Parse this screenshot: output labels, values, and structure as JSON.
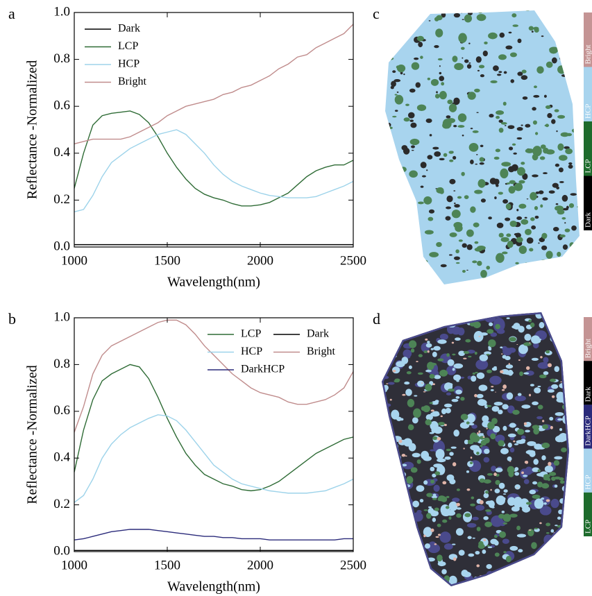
{
  "chart_data": [
    {
      "type": "line",
      "panel_label": "a",
      "xlabel": "Wavelength(nm)",
      "ylabel": "Reflectance -Normalized",
      "x": [
        1000,
        1050,
        1100,
        1150,
        1200,
        1250,
        1300,
        1350,
        1400,
        1450,
        1500,
        1550,
        1600,
        1650,
        1700,
        1750,
        1800,
        1850,
        1900,
        1950,
        2000,
        2050,
        2100,
        2150,
        2200,
        2250,
        2300,
        2350,
        2400,
        2450,
        2500
      ],
      "series": [
        {
          "name": "Dark",
          "color": "#000000",
          "values": [
            0.01,
            0.01,
            0.01,
            0.01,
            0.01,
            0.01,
            0.01,
            0.01,
            0.01,
            0.01,
            0.01,
            0.01,
            0.01,
            0.01,
            0.01,
            0.01,
            0.01,
            0.01,
            0.01,
            0.01,
            0.01,
            0.01,
            0.01,
            0.01,
            0.01,
            0.01,
            0.01,
            0.01,
            0.01,
            0.01,
            0.01
          ]
        },
        {
          "name": "LCP",
          "color": "#2e6b35",
          "values": [
            0.25,
            0.4,
            0.52,
            0.56,
            0.57,
            0.575,
            0.58,
            0.565,
            0.53,
            0.47,
            0.4,
            0.34,
            0.29,
            0.25,
            0.225,
            0.21,
            0.2,
            0.185,
            0.175,
            0.175,
            0.18,
            0.19,
            0.21,
            0.23,
            0.265,
            0.3,
            0.325,
            0.34,
            0.35,
            0.35,
            0.37
          ]
        },
        {
          "name": "HCP",
          "color": "#9dd3ea",
          "values": [
            0.15,
            0.16,
            0.22,
            0.3,
            0.36,
            0.39,
            0.42,
            0.44,
            0.46,
            0.48,
            0.49,
            0.5,
            0.48,
            0.44,
            0.4,
            0.35,
            0.31,
            0.28,
            0.26,
            0.245,
            0.23,
            0.22,
            0.215,
            0.21,
            0.21,
            0.21,
            0.215,
            0.23,
            0.245,
            0.26,
            0.28
          ]
        },
        {
          "name": "Bright",
          "color": "#c08c8c",
          "values": [
            0.44,
            0.45,
            0.46,
            0.46,
            0.46,
            0.46,
            0.47,
            0.49,
            0.51,
            0.53,
            0.56,
            0.58,
            0.6,
            0.61,
            0.62,
            0.63,
            0.65,
            0.66,
            0.68,
            0.69,
            0.71,
            0.73,
            0.76,
            0.78,
            0.81,
            0.82,
            0.85,
            0.87,
            0.89,
            0.91,
            0.95
          ]
        }
      ],
      "xlim": [
        1000,
        2500
      ],
      "ylim": [
        0,
        1
      ],
      "xticks": [
        1000,
        1500,
        2000,
        2500
      ],
      "yticks": [
        {
          "value": 0,
          "label": "0.0"
        },
        {
          "value": 0.2,
          "label": "0.2"
        },
        {
          "value": 0.4,
          "label": "0.4"
        },
        {
          "value": 0.6,
          "label": "0.6"
        },
        {
          "value": 0.8,
          "label": "0.8"
        },
        {
          "value": 1,
          "label": "1.0"
        }
      ],
      "legend": "upper left",
      "legend_columns": 1
    },
    {
      "type": "line",
      "panel_label": "b",
      "xlabel": "Wavelength(nm)",
      "ylabel": "Reflectance -Normalized",
      "x": [
        1000,
        1050,
        1100,
        1150,
        1200,
        1250,
        1300,
        1350,
        1400,
        1450,
        1500,
        1550,
        1600,
        1650,
        1700,
        1750,
        1800,
        1850,
        1900,
        1950,
        2000,
        2050,
        2100,
        2150,
        2200,
        2250,
        2300,
        2350,
        2400,
        2450,
        2500
      ],
      "series": [
        {
          "name": "LCP",
          "color": "#2e6b35",
          "values": [
            0.34,
            0.52,
            0.65,
            0.73,
            0.76,
            0.78,
            0.8,
            0.79,
            0.74,
            0.66,
            0.57,
            0.49,
            0.42,
            0.37,
            0.33,
            0.31,
            0.29,
            0.28,
            0.265,
            0.26,
            0.265,
            0.28,
            0.3,
            0.33,
            0.36,
            0.39,
            0.42,
            0.44,
            0.46,
            0.48,
            0.49
          ]
        },
        {
          "name": "HCP",
          "color": "#9dd3ea",
          "values": [
            0.21,
            0.24,
            0.31,
            0.4,
            0.46,
            0.5,
            0.53,
            0.55,
            0.57,
            0.585,
            0.58,
            0.56,
            0.52,
            0.47,
            0.42,
            0.37,
            0.34,
            0.31,
            0.29,
            0.28,
            0.27,
            0.26,
            0.255,
            0.25,
            0.25,
            0.25,
            0.255,
            0.26,
            0.275,
            0.29,
            0.31
          ]
        },
        {
          "name": "DarkHCP",
          "color": "#2a2a7a",
          "values": [
            0.05,
            0.055,
            0.065,
            0.075,
            0.085,
            0.09,
            0.095,
            0.095,
            0.095,
            0.09,
            0.085,
            0.08,
            0.075,
            0.07,
            0.065,
            0.065,
            0.06,
            0.06,
            0.055,
            0.055,
            0.055,
            0.05,
            0.05,
            0.05,
            0.05,
            0.05,
            0.05,
            0.05,
            0.05,
            0.055,
            0.055
          ]
        },
        {
          "name": "Dark",
          "color": "#000000",
          "values": [
            0.005,
            0.005,
            0.005,
            0.005,
            0.005,
            0.005,
            0.005,
            0.005,
            0.005,
            0.005,
            0.005,
            0.005,
            0.005,
            0.005,
            0.005,
            0.005,
            0.005,
            0.005,
            0.005,
            0.005,
            0.005,
            0.005,
            0.005,
            0.005,
            0.005,
            0.005,
            0.005,
            0.005,
            0.005,
            0.005,
            0.005
          ]
        },
        {
          "name": "Bright",
          "color": "#c08c8c",
          "values": [
            0.51,
            0.62,
            0.76,
            0.84,
            0.88,
            0.9,
            0.92,
            0.94,
            0.96,
            0.98,
            0.99,
            0.99,
            0.97,
            0.93,
            0.88,
            0.84,
            0.8,
            0.76,
            0.73,
            0.7,
            0.68,
            0.67,
            0.66,
            0.64,
            0.63,
            0.63,
            0.64,
            0.65,
            0.67,
            0.7,
            0.77
          ]
        }
      ],
      "xlim": [
        1000,
        2500
      ],
      "ylim": [
        0,
        1
      ],
      "xticks": [
        1000,
        1500,
        2000,
        2500
      ],
      "yticks": [
        {
          "value": 0,
          "label": "0.0"
        },
        {
          "value": 0.2,
          "label": "0.2"
        },
        {
          "value": 0.4,
          "label": "0.4"
        },
        {
          "value": 0.6,
          "label": "0.6"
        },
        {
          "value": 0.8,
          "label": "0.8"
        },
        {
          "value": 1,
          "label": "1.0"
        }
      ],
      "legend": "upper right",
      "legend_columns": 2
    }
  ],
  "maps": [
    {
      "panel_label": "c",
      "legend": [
        {
          "name": "Bright",
          "color": "#c49494"
        },
        {
          "name": "HCP",
          "color": "#a8d4ee"
        },
        {
          "name": "LCP",
          "color": "#1d6b2c"
        },
        {
          "name": "Dark",
          "color": "#000000"
        }
      ]
    },
    {
      "panel_label": "d",
      "legend": [
        {
          "name": "Bright",
          "color": "#c49494"
        },
        {
          "name": "Dark",
          "color": "#000000"
        },
        {
          "name": "DarkHCP",
          "color": "#2a2a7a"
        },
        {
          "name": "HCP",
          "color": "#a8d4ee"
        },
        {
          "name": "LCP",
          "color": "#1d6b2c"
        }
      ]
    }
  ]
}
